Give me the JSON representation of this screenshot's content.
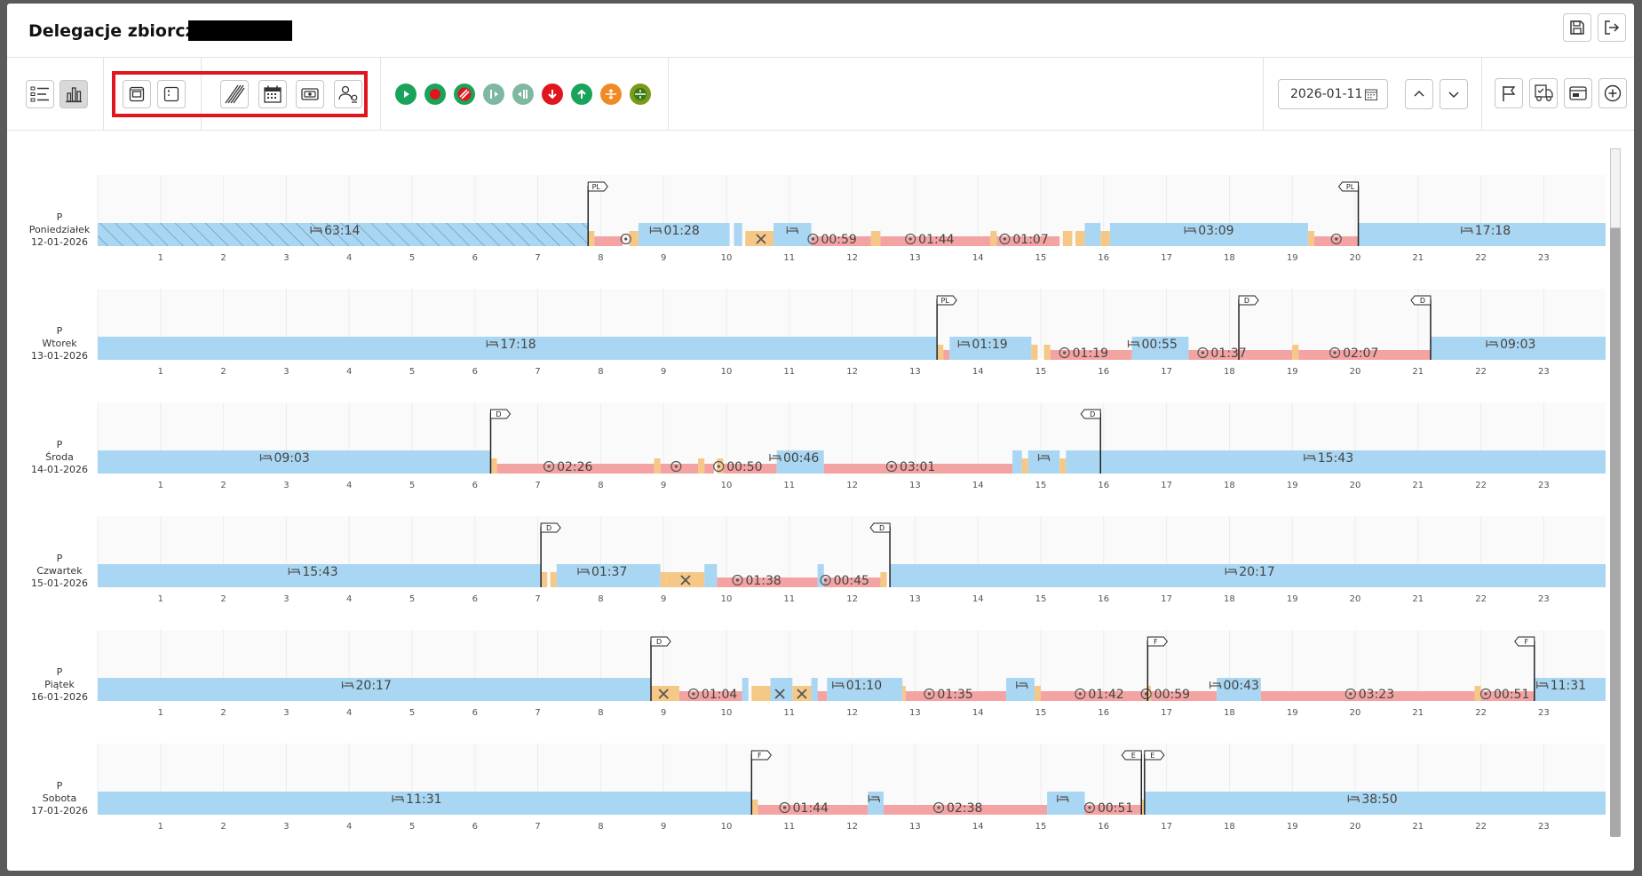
{
  "title": "Delegacje zbiorcze",
  "date_value": "2026-01-11",
  "icons": {
    "header": [
      "save-icon",
      "exit-icon"
    ],
    "view": [
      "list-view-icon",
      "chart-view-icon"
    ],
    "options": [
      "layout-icon",
      "sidebar-icon",
      "hatch-icon",
      "calendar-icon",
      "money-icon",
      "users-icon"
    ],
    "activities": [
      {
        "name": "start-icon",
        "color": "#1aa35a"
      },
      {
        "name": "record-icon",
        "color": "#1aa35a"
      },
      {
        "name": "hatched-icon",
        "color": "#e0161f"
      },
      {
        "name": "split-left-icon",
        "color": "#7fb8a0"
      },
      {
        "name": "split-right-icon",
        "color": "#7fb8a0"
      },
      {
        "name": "arrow-down-icon",
        "color": "#e0161f"
      },
      {
        "name": "arrow-up-icon",
        "color": "#1aa35a"
      },
      {
        "name": "border-out-icon",
        "color": "#f08a24"
      },
      {
        "name": "border-in-icon",
        "color": "#7a9a1a"
      }
    ],
    "right": [
      "flag-icon",
      "truck-icon",
      "card-icon",
      "add-icon"
    ]
  },
  "colors": {
    "rest": "#a9d6f2",
    "drive": "#f4a3a3",
    "work": "#f6c887",
    "hatch": "#a9d6f2"
  },
  "hours": [
    "1",
    "2",
    "3",
    "4",
    "5",
    "6",
    "7",
    "8",
    "9",
    "10",
    "11",
    "12",
    "13",
    "14",
    "15",
    "16",
    "17",
    "18",
    "19",
    "20",
    "21",
    "22",
    "23"
  ],
  "days": [
    {
      "code": "P",
      "name": "Poniedziałek",
      "date": "12-01-2026",
      "segments": [
        {
          "t": "hatch",
          "s": 0,
          "e": 7.8
        },
        {
          "t": "work",
          "s": 7.8,
          "e": 7.9
        },
        {
          "t": "drive",
          "s": 7.9,
          "e": 8.35
        },
        {
          "t": "work",
          "s": 8.45,
          "e": 8.6
        },
        {
          "t": "rest",
          "s": 8.6,
          "e": 10.05
        },
        {
          "t": "rest",
          "s": 10.12,
          "e": 10.25
        },
        {
          "t": "work",
          "s": 10.3,
          "e": 10.75
        },
        {
          "t": "rest",
          "s": 10.75,
          "e": 11.35
        },
        {
          "t": "drive",
          "s": 11.35,
          "e": 12.3
        },
        {
          "t": "work",
          "s": 12.3,
          "e": 12.45
        },
        {
          "t": "drive",
          "s": 12.45,
          "e": 14.2
        },
        {
          "t": "work",
          "s": 14.2,
          "e": 14.3
        },
        {
          "t": "drive",
          "s": 14.3,
          "e": 15.3
        },
        {
          "t": "work",
          "s": 15.35,
          "e": 15.5
        },
        {
          "t": "work",
          "s": 15.55,
          "e": 15.7
        },
        {
          "t": "rest",
          "s": 15.7,
          "e": 15.95
        },
        {
          "t": "work",
          "s": 15.95,
          "e": 16.1
        },
        {
          "t": "rest",
          "s": 16.1,
          "e": 19.25
        },
        {
          "t": "work",
          "s": 19.25,
          "e": 19.35
        },
        {
          "t": "drive",
          "s": 19.35,
          "e": 20.05
        },
        {
          "t": "rest",
          "s": 20.05,
          "e": 24
        }
      ],
      "labels": [
        {
          "text": "63:14",
          "x": 3.9,
          "icon": "bed"
        },
        {
          "text": "01:28",
          "x": 9.3,
          "icon": "bed"
        },
        {
          "text": "",
          "x": 10.55,
          "icon": "tools"
        },
        {
          "text": "",
          "x": 11.05,
          "icon": "bed"
        },
        {
          "text": "",
          "x": 8.4,
          "icon": "wheel"
        },
        {
          "text": "00:59",
          "x": 11.8,
          "icon": "wheel"
        },
        {
          "text": "01:44",
          "x": 13.35,
          "icon": "wheel"
        },
        {
          "text": "01:07",
          "x": 14.85,
          "icon": "wheel"
        },
        {
          "text": "03:09",
          "x": 17.8,
          "icon": "bed"
        },
        {
          "text": "",
          "x": 19.7,
          "icon": "wheel"
        },
        {
          "text": "17:18",
          "x": 22.2,
          "icon": "bed"
        }
      ],
      "flags": [
        {
          "label": "PL",
          "x": 7.8,
          "dir": "r"
        },
        {
          "label": "PL",
          "x": 20.05,
          "dir": "l"
        }
      ]
    },
    {
      "code": "P",
      "name": "Wtorek",
      "date": "13-01-2026",
      "segments": [
        {
          "t": "rest",
          "s": 0,
          "e": 13.35
        },
        {
          "t": "work",
          "s": 13.35,
          "e": 13.45
        },
        {
          "t": "drive",
          "s": 13.45,
          "e": 13.55
        },
        {
          "t": "rest",
          "s": 13.55,
          "e": 14.85
        },
        {
          "t": "work",
          "s": 14.85,
          "e": 14.95
        },
        {
          "t": "work",
          "s": 15.05,
          "e": 15.15
        },
        {
          "t": "drive",
          "s": 15.15,
          "e": 16.45
        },
        {
          "t": "rest",
          "s": 16.45,
          "e": 17.35
        },
        {
          "t": "drive",
          "s": 17.35,
          "e": 18.25
        },
        {
          "t": "drive",
          "s": 18.25,
          "e": 19.0
        },
        {
          "t": "work",
          "s": 19.0,
          "e": 19.1
        },
        {
          "t": "drive",
          "s": 19.1,
          "e": 21.2
        },
        {
          "t": "rest",
          "s": 21.2,
          "e": 24
        }
      ],
      "labels": [
        {
          "text": "17:18",
          "x": 6.7,
          "icon": "bed"
        },
        {
          "text": "01:19",
          "x": 14.2,
          "icon": "bed"
        },
        {
          "text": "01:19",
          "x": 15.8,
          "icon": "wheel"
        },
        {
          "text": "00:55",
          "x": 16.9,
          "icon": "bed"
        },
        {
          "text": "01:37",
          "x": 18.0,
          "icon": "wheel"
        },
        {
          "text": "02:07",
          "x": 20.1,
          "icon": "wheel"
        },
        {
          "text": "09:03",
          "x": 22.6,
          "icon": "bed"
        }
      ],
      "flags": [
        {
          "label": "PL",
          "x": 13.35,
          "dir": "r"
        },
        {
          "label": "D",
          "x": 18.15,
          "dir": "r"
        },
        {
          "label": "D",
          "x": 21.2,
          "dir": "l"
        }
      ]
    },
    {
      "code": "P",
      "name": "Środa",
      "date": "14-01-2026",
      "segments": [
        {
          "t": "rest",
          "s": 0,
          "e": 6.25
        },
        {
          "t": "work",
          "s": 6.25,
          "e": 6.35
        },
        {
          "t": "drive",
          "s": 6.35,
          "e": 8.85
        },
        {
          "t": "work",
          "s": 8.85,
          "e": 8.95
        },
        {
          "t": "drive",
          "s": 8.95,
          "e": 9.55
        },
        {
          "t": "work",
          "s": 9.55,
          "e": 9.65
        },
        {
          "t": "drive",
          "s": 9.65,
          "e": 9.8
        },
        {
          "t": "work",
          "s": 9.85,
          "e": 9.95
        },
        {
          "t": "drive",
          "s": 9.95,
          "e": 10.8
        },
        {
          "t": "rest",
          "s": 10.8,
          "e": 11.55
        },
        {
          "t": "drive",
          "s": 11.55,
          "e": 14.55
        },
        {
          "t": "rest",
          "s": 14.55,
          "e": 14.7
        },
        {
          "t": "work",
          "s": 14.7,
          "e": 14.8
        },
        {
          "t": "rest",
          "s": 14.8,
          "e": 15.3
        },
        {
          "t": "work",
          "s": 15.3,
          "e": 15.4
        },
        {
          "t": "rest",
          "s": 15.4,
          "e": 24
        }
      ],
      "labels": [
        {
          "text": "09:03",
          "x": 3.1,
          "icon": "bed"
        },
        {
          "text": "02:26",
          "x": 7.6,
          "icon": "wheel"
        },
        {
          "text": "",
          "x": 9.2,
          "icon": "wheel"
        },
        {
          "text": "00:50",
          "x": 10.3,
          "icon": "wheel"
        },
        {
          "text": "00:46",
          "x": 11.2,
          "icon": "bed"
        },
        {
          "text": "03:01",
          "x": 13.05,
          "icon": "wheel"
        },
        {
          "text": "",
          "x": 15.05,
          "icon": "bed"
        },
        {
          "text": "15:43",
          "x": 19.7,
          "icon": "bed"
        }
      ],
      "flags": [
        {
          "label": "D",
          "x": 6.25,
          "dir": "r"
        },
        {
          "label": "D",
          "x": 15.95,
          "dir": "l"
        }
      ]
    },
    {
      "code": "P",
      "name": "Czwartek",
      "date": "15-01-2026",
      "segments": [
        {
          "t": "rest",
          "s": 0,
          "e": 7.05
        },
        {
          "t": "work",
          "s": 7.05,
          "e": 7.15
        },
        {
          "t": "work",
          "s": 7.2,
          "e": 7.3
        },
        {
          "t": "rest",
          "s": 7.3,
          "e": 8.95
        },
        {
          "t": "work",
          "s": 8.95,
          "e": 9.05
        },
        {
          "t": "work",
          "s": 9.05,
          "e": 9.65
        },
        {
          "t": "rest",
          "s": 9.65,
          "e": 9.85
        },
        {
          "t": "drive",
          "s": 9.85,
          "e": 11.45
        },
        {
          "t": "rest",
          "s": 11.45,
          "e": 11.55
        },
        {
          "t": "drive",
          "s": 11.55,
          "e": 12.45
        },
        {
          "t": "work",
          "s": 12.45,
          "e": 12.55
        },
        {
          "t": "rest",
          "s": 12.6,
          "e": 24
        }
      ],
      "labels": [
        {
          "text": "15:43",
          "x": 3.55,
          "icon": "bed"
        },
        {
          "text": "01:37",
          "x": 8.15,
          "icon": "bed"
        },
        {
          "text": "",
          "x": 9.35,
          "icon": "tools"
        },
        {
          "text": "01:38",
          "x": 10.6,
          "icon": "wheel"
        },
        {
          "text": "00:45",
          "x": 12.0,
          "icon": "wheel"
        },
        {
          "text": "20:17",
          "x": 18.45,
          "icon": "bed"
        }
      ],
      "flags": [
        {
          "label": "D",
          "x": 7.05,
          "dir": "r"
        },
        {
          "label": "D",
          "x": 12.6,
          "dir": "l"
        }
      ]
    },
    {
      "code": "P",
      "name": "Piątek",
      "date": "16-01-2026",
      "segments": [
        {
          "t": "rest",
          "s": 0,
          "e": 8.8
        },
        {
          "t": "work",
          "s": 8.8,
          "e": 9.25
        },
        {
          "t": "drive",
          "s": 9.25,
          "e": 10.25
        },
        {
          "t": "rest",
          "s": 10.25,
          "e": 10.35
        },
        {
          "t": "work",
          "s": 10.4,
          "e": 10.7
        },
        {
          "t": "rest",
          "s": 10.7,
          "e": 11.05
        },
        {
          "t": "work",
          "s": 11.05,
          "e": 11.35
        },
        {
          "t": "rest",
          "s": 11.35,
          "e": 11.45
        },
        {
          "t": "drive",
          "s": 11.45,
          "e": 11.6
        },
        {
          "t": "rest",
          "s": 11.6,
          "e": 12.8
        },
        {
          "t": "work",
          "s": 12.8,
          "e": 12.85
        },
        {
          "t": "drive",
          "s": 12.85,
          "e": 14.45
        },
        {
          "t": "rest",
          "s": 14.45,
          "e": 14.9
        },
        {
          "t": "work",
          "s": 14.9,
          "e": 15.0
        },
        {
          "t": "drive",
          "s": 15.0,
          "e": 16.7
        },
        {
          "t": "work",
          "s": 16.7,
          "e": 16.75
        },
        {
          "t": "drive",
          "s": 16.75,
          "e": 17.8
        },
        {
          "t": "rest",
          "s": 17.8,
          "e": 18.5
        },
        {
          "t": "drive",
          "s": 18.5,
          "e": 21.9
        },
        {
          "t": "work",
          "s": 21.9,
          "e": 22.0
        },
        {
          "t": "drive",
          "s": 22.0,
          "e": 22.85
        },
        {
          "t": "rest",
          "s": 22.85,
          "e": 24
        }
      ],
      "labels": [
        {
          "text": "20:17",
          "x": 4.4,
          "icon": "bed"
        },
        {
          "text": "",
          "x": 9.0,
          "icon": "tools"
        },
        {
          "text": "01:04",
          "x": 9.9,
          "icon": "wheel"
        },
        {
          "text": "",
          "x": 10.85,
          "icon": "tools"
        },
        {
          "text": "",
          "x": 11.2,
          "icon": "tools"
        },
        {
          "text": "01:10",
          "x": 12.2,
          "icon": "bed"
        },
        {
          "text": "01:35",
          "x": 13.65,
          "icon": "wheel"
        },
        {
          "text": "",
          "x": 14.7,
          "icon": "bed"
        },
        {
          "text": "01:42",
          "x": 16.05,
          "icon": "wheel"
        },
        {
          "text": "00:59",
          "x": 17.1,
          "icon": "wheel"
        },
        {
          "text": "00:43",
          "x": 18.2,
          "icon": "bed"
        },
        {
          "text": "03:23",
          "x": 20.35,
          "icon": "wheel"
        },
        {
          "text": "00:51",
          "x": 22.5,
          "icon": "wheel"
        },
        {
          "text": "11:31",
          "x": 23.4,
          "icon": "bed"
        }
      ],
      "flags": [
        {
          "label": "D",
          "x": 8.8,
          "dir": "r"
        },
        {
          "label": "F",
          "x": 16.7,
          "dir": "r"
        },
        {
          "label": "F",
          "x": 22.85,
          "dir": "l"
        }
      ]
    },
    {
      "code": "P",
      "name": "Sobota",
      "date": "17-01-2026",
      "segments": [
        {
          "t": "rest",
          "s": 0,
          "e": 10.4
        },
        {
          "t": "work",
          "s": 10.4,
          "e": 10.5
        },
        {
          "t": "drive",
          "s": 10.5,
          "e": 12.25
        },
        {
          "t": "rest",
          "s": 12.25,
          "e": 12.5
        },
        {
          "t": "drive",
          "s": 12.5,
          "e": 15.1
        },
        {
          "t": "rest",
          "s": 15.1,
          "e": 15.7
        },
        {
          "t": "drive",
          "s": 15.7,
          "e": 16.6
        },
        {
          "t": "work",
          "s": 16.6,
          "e": 16.65
        },
        {
          "t": "rest",
          "s": 16.65,
          "e": 24
        }
      ],
      "labels": [
        {
          "text": "11:31",
          "x": 5.2,
          "icon": "bed"
        },
        {
          "text": "01:44",
          "x": 11.35,
          "icon": "wheel"
        },
        {
          "text": "",
          "x": 12.35,
          "icon": "bed"
        },
        {
          "text": "02:38",
          "x": 13.8,
          "icon": "wheel"
        },
        {
          "text": "",
          "x": 15.35,
          "icon": "bed"
        },
        {
          "text": "00:51",
          "x": 16.2,
          "icon": "wheel"
        },
        {
          "text": "38:50",
          "x": 20.4,
          "icon": "bed"
        }
      ],
      "flags": [
        {
          "label": "F",
          "x": 10.4,
          "dir": "r"
        },
        {
          "label": "E",
          "x": 16.6,
          "dir": "l"
        },
        {
          "label": "E",
          "x": 16.65,
          "dir": "r"
        }
      ]
    }
  ]
}
